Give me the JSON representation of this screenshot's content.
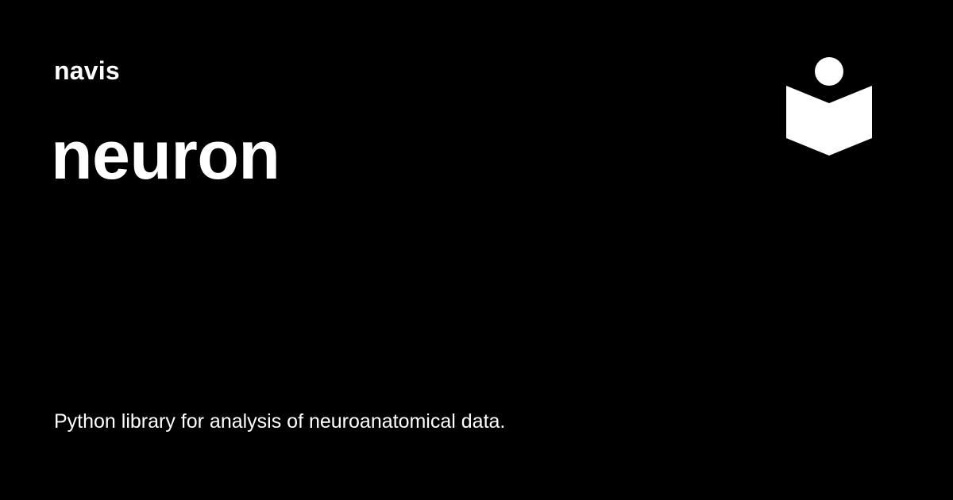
{
  "site": {
    "name": "navis",
    "logo_icon": "reader-book-icon",
    "accent_color": "#ffffff",
    "background_color": "#000000"
  },
  "page": {
    "title": "neuron",
    "description": "Python library for analysis of neuroanatomical data."
  }
}
